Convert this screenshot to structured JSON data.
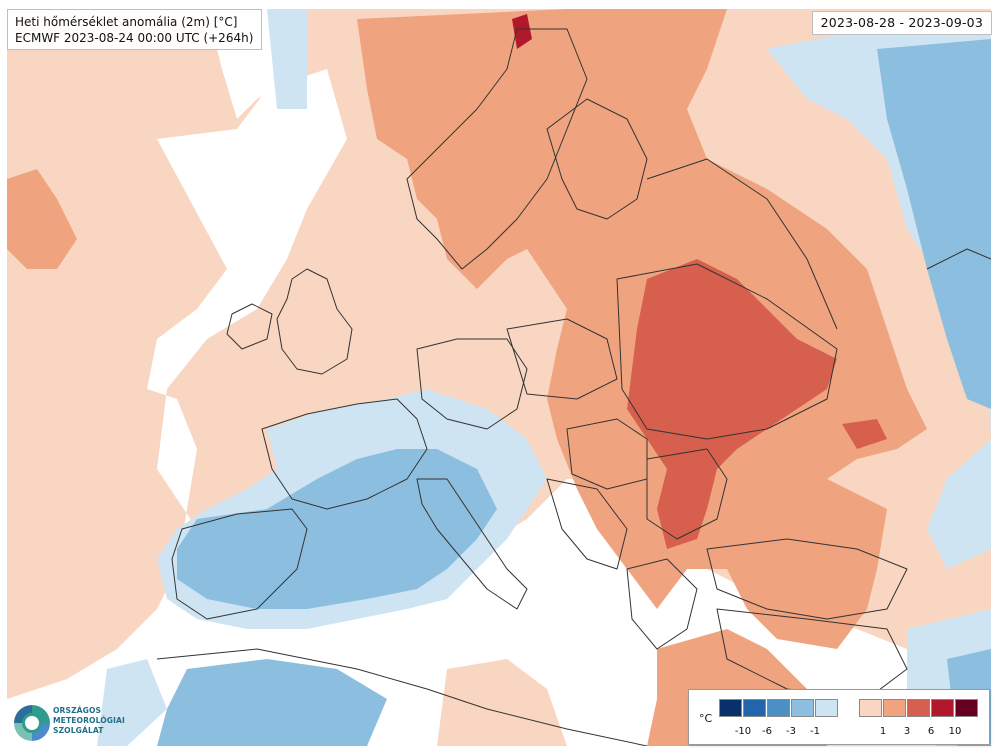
{
  "title": {
    "line1": "Heti hőmérséklet anomália (2m) [°C]",
    "line2": "ECMWF 2023-08-24 00:00 UTC (+264h)"
  },
  "period": "2023-08-28 - 2023-09-03",
  "legend": {
    "unit": "°C",
    "negative": [
      {
        "color": "#08306b",
        "label": "-10"
      },
      {
        "color": "#2166ac",
        "label": "-6"
      },
      {
        "color": "#4a90c4",
        "label": "-3"
      },
      {
        "color": "#8cbfdf",
        "label": "-1"
      },
      {
        "color": "#cfe4f2",
        "label": ""
      }
    ],
    "positive": [
      {
        "color": "#f9d6c1",
        "label": "1"
      },
      {
        "color": "#efa47f",
        "label": "3"
      },
      {
        "color": "#d6604d",
        "label": "6"
      },
      {
        "color": "#b2182b",
        "label": "10"
      },
      {
        "color": "#67001f",
        "label": ""
      }
    ]
  },
  "logo": {
    "line1": "ORSZÁGOS",
    "line2": "METEOROLÓGIAI",
    "line3": "SZOLGÁLAT"
  },
  "colors": {
    "anomaly_pos_weak": "#f9d6c1",
    "anomaly_pos_mid": "#efa47f",
    "anomaly_pos_strong": "#d6604d",
    "anomaly_pos_extreme": "#b2182b",
    "anomaly_neg_weak": "#cfe4f2",
    "anomaly_neg_mid": "#8cbfdf",
    "anomaly_neg_strong": "#4a90c4",
    "near_zero": "#ffffff",
    "border_lines": "#333333"
  }
}
